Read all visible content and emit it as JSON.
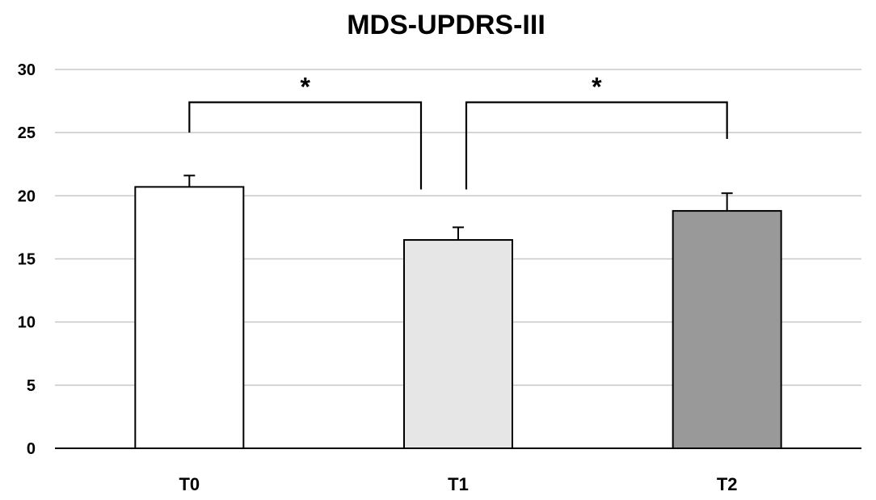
{
  "chart_data": {
    "type": "bar",
    "title": "MDS-UPDRS-III",
    "categories": [
      "T0",
      "T1",
      "T2"
    ],
    "values": [
      20.7,
      16.5,
      18.8
    ],
    "error": [
      0.9,
      1.0,
      1.4
    ],
    "bar_colors": [
      "#ffffff",
      "#e6e6e6",
      "#999999"
    ],
    "ylim": [
      0,
      30
    ],
    "yticks": [
      0,
      5,
      10,
      15,
      20,
      25,
      30
    ],
    "grid": true,
    "xlabel": "",
    "ylabel": "",
    "significance": [
      {
        "from": "T0",
        "to": "T1",
        "label": "*"
      },
      {
        "from": "T1",
        "to": "T2",
        "label": "*"
      }
    ]
  }
}
